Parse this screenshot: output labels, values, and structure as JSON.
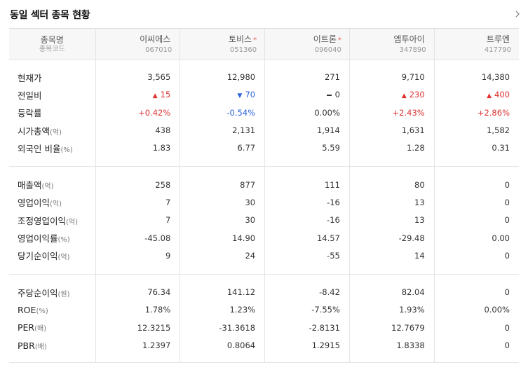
{
  "title": "동일 섹터 종목 현황",
  "header": {
    "name_label": "종목명",
    "code_label": "종목코드"
  },
  "stocks": [
    {
      "name": "이씨에스",
      "code": "067010",
      "star": ""
    },
    {
      "name": "토비스",
      "code": "051360",
      "star": "*"
    },
    {
      "name": "이트론",
      "code": "096040",
      "star": "*"
    },
    {
      "name": "엠투아이",
      "code": "347890",
      "star": ""
    },
    {
      "name": "트루엔",
      "code": "417790",
      "star": ""
    }
  ],
  "sections": [
    {
      "rows": [
        {
          "label": "현재가",
          "unit": "",
          "values": [
            "3,565",
            "12,980",
            "271",
            "9,710",
            "14,380"
          ]
        },
        {
          "label": "전일비",
          "unit": "",
          "kind": "change",
          "values": [
            {
              "dir": "up",
              "text": "15"
            },
            {
              "dir": "down",
              "text": "70"
            },
            {
              "dir": "flat",
              "text": "0"
            },
            {
              "dir": "up",
              "text": "230"
            },
            {
              "dir": "up",
              "text": "400"
            }
          ]
        },
        {
          "label": "등락률",
          "unit": "",
          "kind": "rate",
          "values": [
            {
              "dir": "up",
              "text": "+0.42%"
            },
            {
              "dir": "down",
              "text": "-0.54%"
            },
            {
              "dir": "flat",
              "text": "0.00%"
            },
            {
              "dir": "up",
              "text": "+2.43%"
            },
            {
              "dir": "up",
              "text": "+2.86%"
            }
          ]
        },
        {
          "label": "시가총액",
          "unit": "(억)",
          "values": [
            "438",
            "2,131",
            "1,914",
            "1,631",
            "1,582"
          ]
        },
        {
          "label": "외국인 비율",
          "unit": "(%)",
          "values": [
            "1.83",
            "6.77",
            "5.59",
            "1.28",
            "0.31"
          ]
        }
      ]
    },
    {
      "rows": [
        {
          "label": "매출액",
          "unit": "(억)",
          "values": [
            "258",
            "877",
            "111",
            "80",
            "0"
          ]
        },
        {
          "label": "영업이익",
          "unit": "(억)",
          "values": [
            "7",
            "30",
            "-16",
            "13",
            "0"
          ]
        },
        {
          "label": "조정영업이익",
          "unit": "(억)",
          "values": [
            "7",
            "30",
            "-16",
            "13",
            "0"
          ]
        },
        {
          "label": "영업이익률",
          "unit": "(%)",
          "values": [
            "-45.08",
            "14.90",
            "14.57",
            "-29.48",
            "0.00"
          ]
        },
        {
          "label": "당기순이익",
          "unit": "(억)",
          "values": [
            "9",
            "24",
            "-55",
            "14",
            "0"
          ]
        }
      ]
    },
    {
      "rows": [
        {
          "label": "주당순이익",
          "unit": "(원)",
          "values": [
            "76.34",
            "141.12",
            "-8.42",
            "82.04",
            "0"
          ]
        },
        {
          "label": "ROE",
          "unit": "(%)",
          "values": [
            "1.78%",
            "1.23%",
            "-7.55%",
            "1.93%",
            "0.00%"
          ]
        },
        {
          "label": "PER",
          "unit": "(배)",
          "values": [
            "12.3215",
            "-31.3618",
            "-2.8131",
            "12.7679",
            "0"
          ]
        },
        {
          "label": "PBR",
          "unit": "(배)",
          "values": [
            "1.2397",
            "0.8064",
            "1.2915",
            "1.8338",
            "0"
          ]
        }
      ]
    }
  ],
  "icons": {
    "more": "chevron-right-icon",
    "up": "triangle-up-icon",
    "down": "triangle-down-icon",
    "flat": "dash-icon"
  },
  "colors": {
    "up": "#e03131",
    "down": "#2b63d9",
    "star": "#e6564b"
  }
}
